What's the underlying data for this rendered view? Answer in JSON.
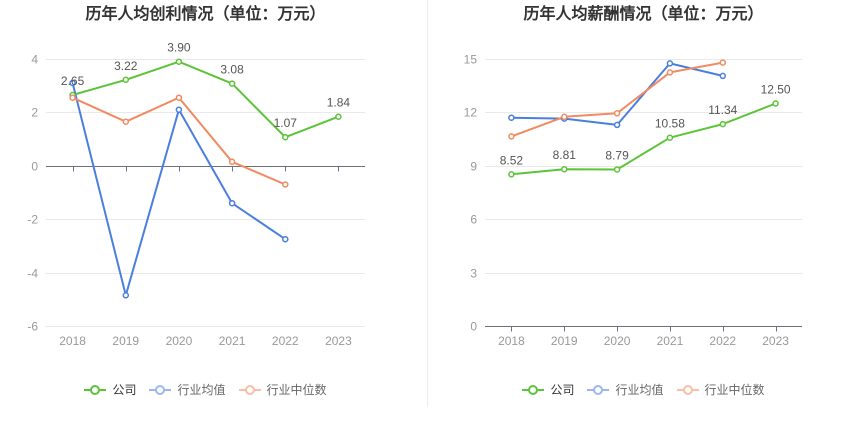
{
  "chart_data": [
    {
      "type": "line",
      "title": "历年人均创利情况（单位：万元）",
      "categories": [
        "2018",
        "2019",
        "2020",
        "2021",
        "2022",
        "2023"
      ],
      "ylim": [
        -6,
        4
      ],
      "yticks": [
        -6,
        -4,
        -2,
        0,
        2,
        4
      ],
      "grid": true,
      "legend": "bottom",
      "series": [
        {
          "name": "公司",
          "color": "#5cc43a",
          "data_labels": true,
          "values": [
            2.65,
            3.22,
            3.9,
            3.08,
            1.07,
            1.84
          ]
        },
        {
          "name": "行业均值",
          "color": "#4a7fe0",
          "data_labels": false,
          "values": [
            3.1,
            -4.85,
            2.1,
            -1.4,
            -2.75,
            null
          ]
        },
        {
          "name": "行业中位数",
          "color": "#f28a62",
          "data_labels": false,
          "values": [
            2.55,
            1.65,
            2.55,
            0.15,
            -0.7,
            null
          ]
        }
      ]
    },
    {
      "type": "line",
      "title": "历年人均薪酬情况（单位：万元）",
      "categories": [
        "2018",
        "2019",
        "2020",
        "2021",
        "2022",
        "2023"
      ],
      "ylim": [
        0,
        15
      ],
      "yticks": [
        0,
        3,
        6,
        9,
        12,
        15
      ],
      "grid": true,
      "legend": "bottom",
      "series": [
        {
          "name": "公司",
          "color": "#5cc43a",
          "data_labels": true,
          "values": [
            8.52,
            8.81,
            8.79,
            10.58,
            11.34,
            12.5
          ]
        },
        {
          "name": "行业均值",
          "color": "#4a7fe0",
          "data_labels": false,
          "values": [
            11.7,
            11.65,
            11.3,
            14.75,
            14.05,
            null
          ]
        },
        {
          "name": "行业中位数",
          "color": "#f28a62",
          "data_labels": false,
          "values": [
            10.65,
            11.75,
            11.95,
            14.25,
            14.8,
            null
          ]
        }
      ]
    }
  ]
}
